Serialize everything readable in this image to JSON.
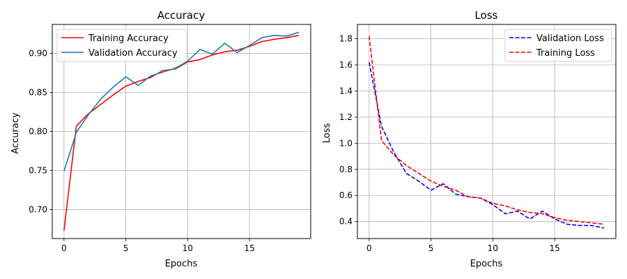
{
  "chart_data": [
    {
      "type": "line",
      "title": "Accuracy",
      "xlabel": "Epochs",
      "ylabel": "Accuracy",
      "xlim": [
        -0.95,
        19.95
      ],
      "ylim": [
        0.663,
        0.937
      ],
      "xticks": [
        0,
        5,
        10,
        15
      ],
      "yticks": [
        0.7,
        0.75,
        0.8,
        0.85,
        0.9
      ],
      "xtick_labels": [
        "0",
        "5",
        "10",
        "15"
      ],
      "ytick_labels": [
        "0.70",
        "0.75",
        "0.80",
        "0.85",
        "0.90"
      ],
      "grid": true,
      "legend_position": "top-left",
      "x": [
        0,
        1,
        2,
        3,
        4,
        5,
        6,
        7,
        8,
        9,
        10,
        11,
        12,
        13,
        14,
        15,
        16,
        17,
        18,
        19
      ],
      "series": [
        {
          "name": "Training Accuracy",
          "color": "#ff0000",
          "style": "solid",
          "values": [
            0.673,
            0.807,
            0.823,
            0.835,
            0.847,
            0.858,
            0.864,
            0.869,
            0.878,
            0.88,
            0.889,
            0.892,
            0.898,
            0.902,
            0.904,
            0.909,
            0.915,
            0.918,
            0.92,
            0.923
          ]
        },
        {
          "name": "Validation Accuracy",
          "color": "#1f77b4",
          "style": "solid",
          "values": [
            0.749,
            0.799,
            0.822,
            0.842,
            0.857,
            0.87,
            0.859,
            0.871,
            0.876,
            0.881,
            0.89,
            0.905,
            0.899,
            0.913,
            0.901,
            0.91,
            0.92,
            0.923,
            0.922,
            0.927
          ]
        }
      ]
    },
    {
      "type": "line",
      "title": "Loss",
      "xlabel": "Epochs",
      "ylabel": "Loss",
      "xlim": [
        -0.95,
        19.95
      ],
      "ylim": [
        0.27,
        1.91
      ],
      "xticks": [
        0,
        5,
        10,
        15
      ],
      "yticks": [
        0.4,
        0.6,
        0.8,
        1.0,
        1.2,
        1.4,
        1.6,
        1.8
      ],
      "xtick_labels": [
        "0",
        "5",
        "10",
        "15"
      ],
      "ytick_labels": [
        "0.4",
        "0.6",
        "0.8",
        "1.0",
        "1.2",
        "1.4",
        "1.6",
        "1.8"
      ],
      "grid": true,
      "legend_position": "top-right",
      "x": [
        0,
        1,
        2,
        3,
        4,
        5,
        6,
        7,
        8,
        9,
        10,
        11,
        12,
        13,
        14,
        15,
        16,
        17,
        18,
        19
      ],
      "series": [
        {
          "name": "Validation Loss",
          "color": "#0000ff",
          "style": "dashed",
          "values": [
            1.62,
            1.13,
            0.93,
            0.77,
            0.71,
            0.64,
            0.69,
            0.61,
            0.59,
            0.58,
            0.53,
            0.46,
            0.48,
            0.42,
            0.48,
            0.42,
            0.38,
            0.37,
            0.37,
            0.35
          ]
        },
        {
          "name": "Training Loss",
          "color": "#ff0000",
          "style": "dashed",
          "values": [
            1.82,
            1.02,
            0.91,
            0.83,
            0.77,
            0.71,
            0.67,
            0.64,
            0.59,
            0.58,
            0.54,
            0.52,
            0.49,
            0.47,
            0.46,
            0.43,
            0.41,
            0.4,
            0.39,
            0.38
          ]
        }
      ]
    }
  ]
}
